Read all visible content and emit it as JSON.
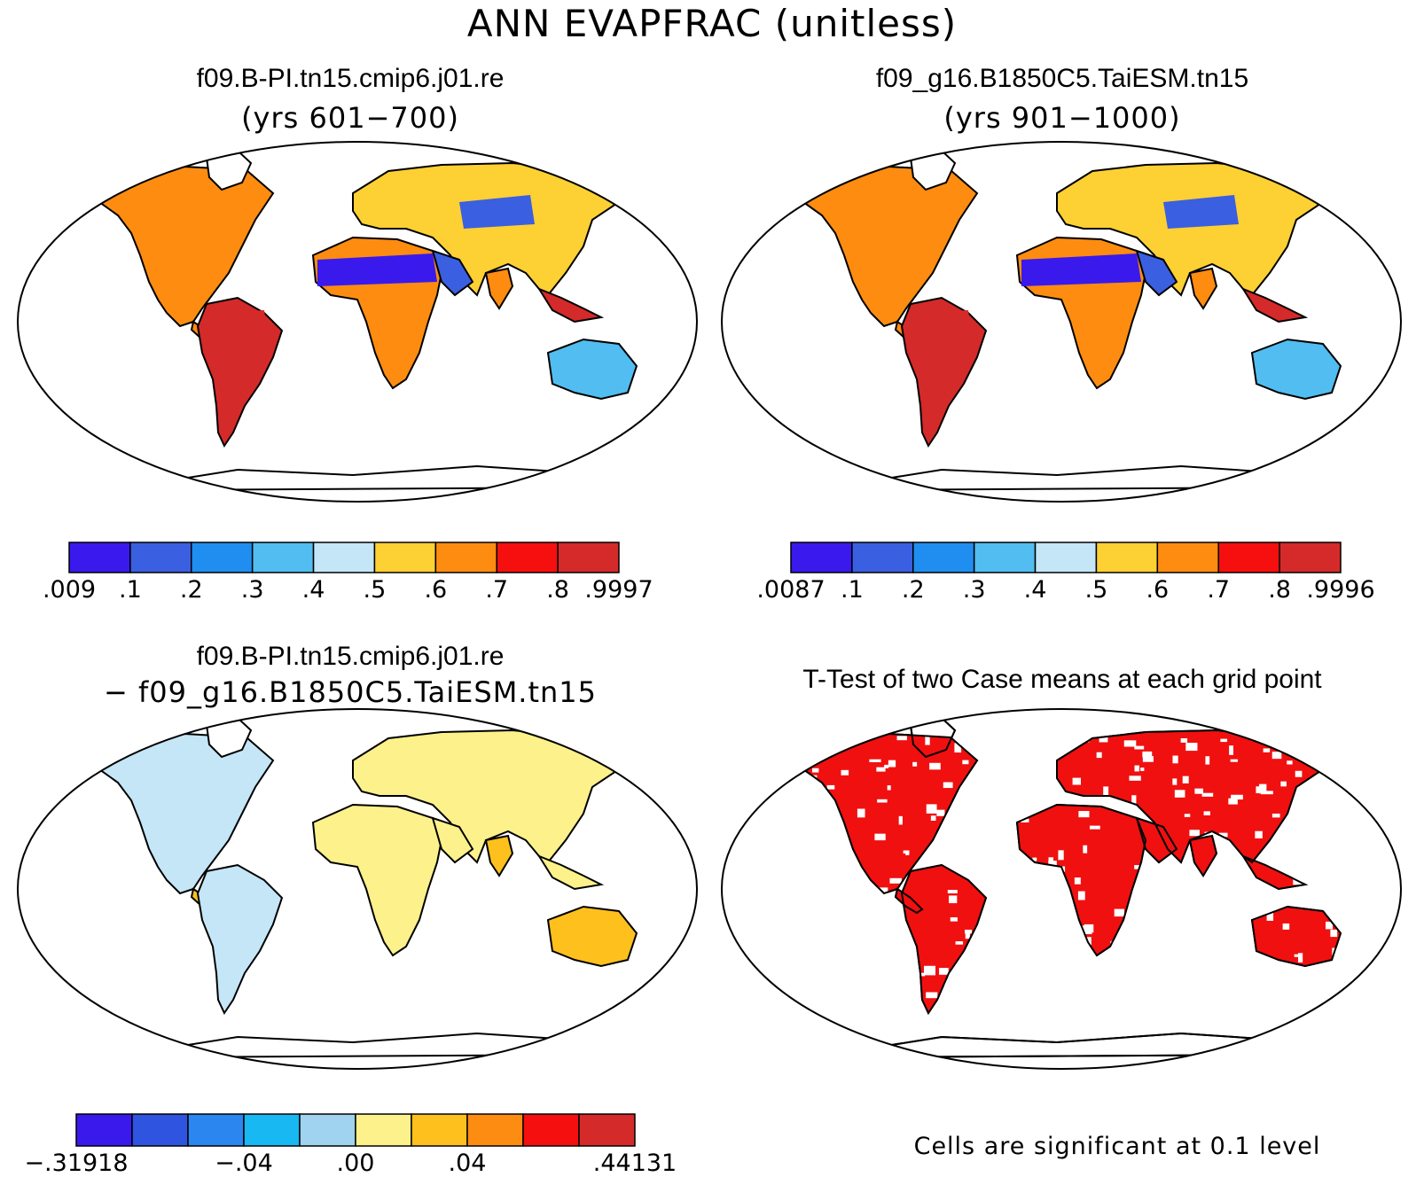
{
  "title": "ANN EVAPFRAC (unitless)",
  "panels": [
    {
      "id": "case1",
      "title": "f09.B-PI.tn15.cmip6.j01.re",
      "subtitle": "(yrs 601−700)",
      "colorbar": {
        "colors": [
          "#3a19ed",
          "#3a5fe0",
          "#1f8ef0",
          "#52bdf0",
          "#c4e6f7",
          "#fdd033",
          "#fd8c10",
          "#f50f0f",
          "#d42a2a"
        ],
        "labels": [
          ".009",
          ".1",
          ".2",
          ".3",
          ".4",
          ".5",
          ".6",
          ".7",
          ".8",
          ".9997"
        ]
      }
    },
    {
      "id": "case2",
      "title": "f09_g16.B1850C5.TaiESM.tn15",
      "subtitle": "(yrs 901−1000)",
      "colorbar": {
        "colors": [
          "#3a19ed",
          "#3a5fe0",
          "#1f8ef0",
          "#52bdf0",
          "#c4e6f7",
          "#fdd033",
          "#fd8c10",
          "#f50f0f",
          "#d42a2a"
        ],
        "labels": [
          ".0087",
          ".1",
          ".2",
          ".3",
          ".4",
          ".5",
          ".6",
          ".7",
          ".8",
          ".9996"
        ]
      }
    },
    {
      "id": "diff",
      "title": "f09.B-PI.tn15.cmip6.j01.re",
      "subtitle": "− f09_g16.B1850C5.TaiESM.tn15",
      "colorbar": {
        "colors": [
          "#3a19ed",
          "#2f55e0",
          "#2b86ef",
          "#18b8f2",
          "#9fd3f0",
          "#fcf18a",
          "#fdc01d",
          "#fd8c12",
          "#f50f0f",
          "#d42a2a"
        ],
        "labels": [
          "−.31918",
          "−.04",
          ".00",
          ".04",
          ".44131"
        ]
      }
    },
    {
      "id": "ttest",
      "title": "T-Test of two Case means at each grid point",
      "note": "Cells are significant at 0.1 level"
    }
  ]
}
